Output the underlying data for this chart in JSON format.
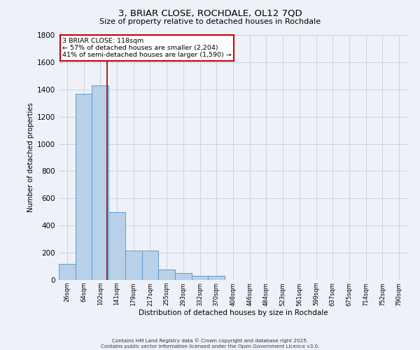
{
  "title": "3, BRIAR CLOSE, ROCHDALE, OL12 7QD",
  "subtitle": "Size of property relative to detached houses in Rochdale",
  "xlabel": "Distribution of detached houses by size in Rochdale",
  "ylabel": "Number of detached properties",
  "categories": [
    "26sqm",
    "64sqm",
    "102sqm",
    "141sqm",
    "179sqm",
    "217sqm",
    "255sqm",
    "293sqm",
    "332sqm",
    "370sqm",
    "408sqm",
    "446sqm",
    "484sqm",
    "523sqm",
    "561sqm",
    "599sqm",
    "637sqm",
    "675sqm",
    "714sqm",
    "752sqm",
    "790sqm"
  ],
  "bar_heights": [
    120,
    1370,
    1430,
    500,
    215,
    215,
    75,
    50,
    30,
    30,
    0,
    0,
    0,
    0,
    0,
    0,
    0,
    0,
    0,
    0,
    0
  ],
  "bar_color": "#b8d0e8",
  "bar_edge_color": "#5a9fd4",
  "grid_color": "#c8d4e4",
  "background_color": "#eef2f8",
  "property_line_x": 2.42,
  "annotation_text": "3 BRIAR CLOSE: 118sqm\n← 57% of detached houses are smaller (2,204)\n41% of semi-detached houses are larger (1,590) →",
  "annotation_box_color": "#ffffff",
  "annotation_box_edge": "#cc0000",
  "red_line_color": "#8b0000",
  "ylim": [
    0,
    1800
  ],
  "yticks": [
    0,
    200,
    400,
    600,
    800,
    1000,
    1200,
    1400,
    1600,
    1800
  ],
  "footer_line1": "Contains HM Land Registry data © Crown copyright and database right 2025.",
  "footer_line2": "Contains public sector information licensed under the Open Government Licence v3.0."
}
